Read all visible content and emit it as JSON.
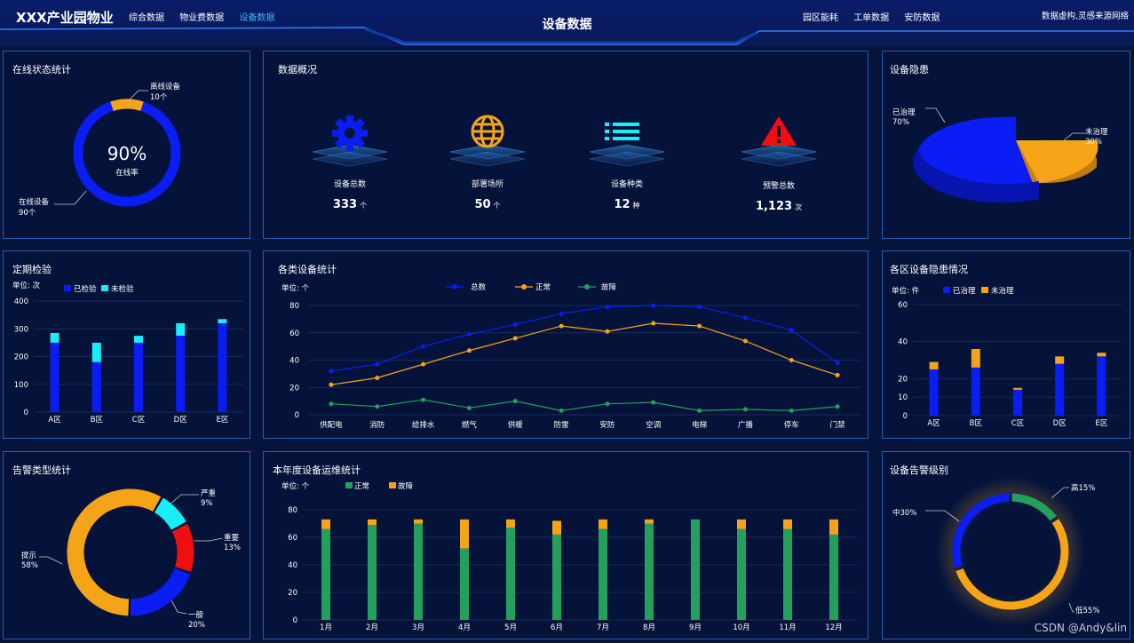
{
  "header": {
    "brand": "XXX产业园物业",
    "nav_left": [
      "综合数据",
      "物业费数据",
      "设备数据"
    ],
    "active_nav": "设备数据",
    "title": "设备数据",
    "nav_right": [
      "园区能耗",
      "工单数据",
      "安防数据"
    ],
    "source_note": "数据虚构,灵感来源网络"
  },
  "online": {
    "title": "在线状态统计",
    "percent": "90%",
    "rate_label": "在线率",
    "offline_label": "离线设备",
    "offline_count": "10个",
    "online_label": "在线设备",
    "online_count": "90个",
    "offline_fraction": 0.1,
    "colors": {
      "online": "#0a1df5",
      "offline": "#f5a418"
    }
  },
  "overview": {
    "title": "数据概况",
    "items": [
      {
        "label": "设备总数",
        "value": "333",
        "unit": "个",
        "icon": "gear-icon"
      },
      {
        "label": "部署场所",
        "value": "50",
        "unit": "个",
        "icon": "globe-icon"
      },
      {
        "label": "设备种类",
        "value": "12",
        "unit": "种",
        "icon": "list-icon"
      },
      {
        "label": "预警总数",
        "value": "1,123",
        "unit": "次",
        "icon": "warning-icon"
      }
    ]
  },
  "hazard": {
    "title": "设备隐患",
    "treated_label": "已治理",
    "treated_pct": "70%",
    "untreated_label": "未治理",
    "untreated_pct": "30%"
  },
  "inspection": {
    "title": "定期检验",
    "unit": "单位: 次",
    "legend": [
      "已检验",
      "未检验"
    ],
    "chart_data": {
      "type": "bar",
      "categories": [
        "A区",
        "B区",
        "C区",
        "D区",
        "E区"
      ],
      "series": [
        {
          "name": "已检验",
          "values": [
            250,
            180,
            250,
            275,
            320
          ]
        },
        {
          "name": "未检验",
          "values": [
            35,
            70,
            25,
            45,
            15
          ]
        }
      ],
      "ylim": [
        0,
        400
      ],
      "yticks": [
        "0",
        "100",
        "200",
        "300",
        "400"
      ]
    }
  },
  "device_stats": {
    "title": "各类设备统计",
    "unit": "单位: 个",
    "legend": [
      "总数",
      "正常",
      "故障"
    ],
    "chart_data": {
      "type": "line",
      "categories": [
        "供配电",
        "消防",
        "给排水",
        "燃气",
        "供暖",
        "防雷",
        "安防",
        "空调",
        "电梯",
        "广播",
        "停车",
        "门禁"
      ],
      "series": [
        {
          "name": "总数",
          "values": [
            32,
            37,
            50,
            59,
            66,
            74,
            79,
            80,
            79,
            71,
            62,
            38
          ]
        },
        {
          "name": "正常",
          "values": [
            22,
            27,
            37,
            47,
            56,
            65,
            61,
            67,
            65,
            54,
            40,
            29
          ]
        },
        {
          "name": "故障",
          "values": [
            8,
            6,
            11,
            5,
            10,
            3,
            8,
            9,
            3,
            4,
            3,
            6
          ]
        }
      ],
      "ylim": [
        0,
        80
      ],
      "yticks": [
        "0",
        "20",
        "40",
        "60",
        "80"
      ]
    }
  },
  "zone_hazard": {
    "title": "各区设备隐患情况",
    "unit": "单位: 件",
    "legend": [
      "已治理",
      "未治理"
    ],
    "chart_data": {
      "type": "bar",
      "categories": [
        "A区",
        "B区",
        "C区",
        "D区",
        "E区"
      ],
      "series": [
        {
          "name": "已治理",
          "values": [
            25,
            26,
            14,
            28,
            32
          ]
        },
        {
          "name": "未治理",
          "values": [
            4,
            10,
            1,
            4,
            2
          ]
        }
      ],
      "ylim": [
        0,
        60
      ],
      "yticks": [
        "0",
        "10",
        "20",
        "40",
        "60"
      ]
    }
  },
  "alarm_types": {
    "title": "告警类型统计",
    "items": [
      {
        "name": "严重",
        "pct": "9%",
        "value": 9,
        "color": "#18eefa"
      },
      {
        "name": "重要",
        "pct": "13%",
        "value": 13,
        "color": "#ef0f0f"
      },
      {
        "name": "一般",
        "pct": "20%",
        "value": 20,
        "color": "#0a1df5"
      },
      {
        "name": "提示",
        "pct": "58%",
        "value": 58,
        "color": "#f5a418"
      }
    ]
  },
  "maintenance": {
    "title": "本年度设备运维统计",
    "unit": "单位: 个",
    "legend": [
      "正常",
      "故障"
    ],
    "chart_data": {
      "type": "bar",
      "categories": [
        "1月",
        "2月",
        "3月",
        "4月",
        "5月",
        "6月",
        "7月",
        "8月",
        "9月",
        "10月",
        "11月",
        "12月"
      ],
      "series": [
        {
          "name": "正常",
          "values": [
            66,
            69,
            70,
            52,
            67,
            62,
            66,
            70,
            73,
            66,
            66,
            62
          ]
        },
        {
          "name": "故障",
          "values": [
            7,
            4,
            3,
            21,
            6,
            10,
            7,
            3,
            0,
            7,
            7,
            11
          ]
        }
      ],
      "ylim": [
        0,
        80
      ],
      "yticks": [
        "0",
        "20",
        "40",
        "60",
        "80"
      ]
    }
  },
  "alarm_levels": {
    "title": "设备告警级别",
    "items": [
      {
        "name": "高15%",
        "value": 15,
        "color": "#24a05c"
      },
      {
        "name": "低55%",
        "value": 55,
        "color": "#f5a418"
      },
      {
        "name": "中30%",
        "value": 30,
        "color": "#0a1df5"
      }
    ]
  },
  "colors": {
    "blue": "#0a1df5",
    "cyan": "#18eefa",
    "orange": "#f5a418",
    "green": "#24a05c",
    "panel_border": "#1f5fb8",
    "grid": "#1b3566"
  },
  "watermark": "CSDN @Andy&lin"
}
